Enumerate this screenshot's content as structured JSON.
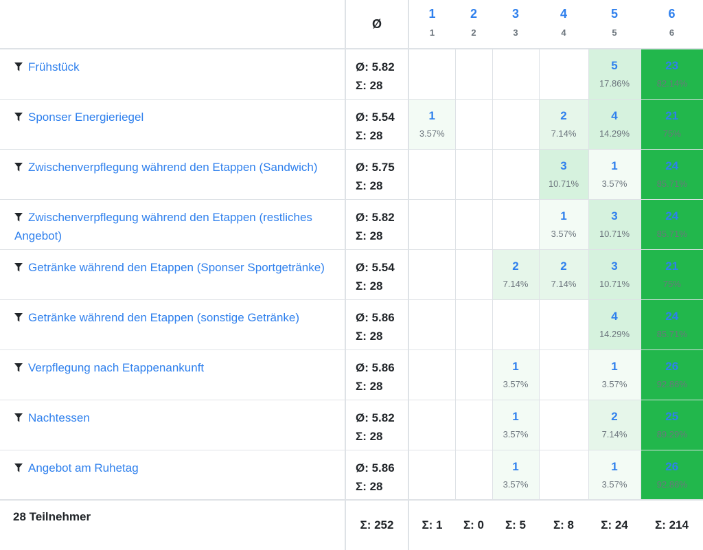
{
  "header": {
    "avg_symbol": "Ø",
    "options": [
      {
        "label": "1",
        "sub": "1"
      },
      {
        "label": "2",
        "sub": "2"
      },
      {
        "label": "3",
        "sub": "3"
      },
      {
        "label": "4",
        "sub": "4"
      },
      {
        "label": "5",
        "sub": "5"
      },
      {
        "label": "6",
        "sub": "6"
      }
    ]
  },
  "colors": {
    "link": "#2f80ed",
    "heat_scale": [
      "#ffffff",
      "#f3fbf5",
      "#e6f6ea",
      "#d6f2de",
      "#22b74c"
    ]
  },
  "rows": [
    {
      "question": "Frühstück",
      "avg": "Ø: 5.82",
      "sum": "Σ: 28",
      "cells": [
        {
          "count": "",
          "pct": ""
        },
        {
          "count": "",
          "pct": ""
        },
        {
          "count": "",
          "pct": ""
        },
        {
          "count": "",
          "pct": ""
        },
        {
          "count": "5",
          "pct": "17.86%"
        },
        {
          "count": "23",
          "pct": "82.14%"
        }
      ]
    },
    {
      "question": "Sponser Energieriegel",
      "avg": "Ø: 5.54",
      "sum": "Σ: 28",
      "cells": [
        {
          "count": "1",
          "pct": "3.57%"
        },
        {
          "count": "",
          "pct": ""
        },
        {
          "count": "",
          "pct": ""
        },
        {
          "count": "2",
          "pct": "7.14%"
        },
        {
          "count": "4",
          "pct": "14.29%"
        },
        {
          "count": "21",
          "pct": "75%"
        }
      ]
    },
    {
      "question": "Zwischenverpflegung während den Etappen (Sand­wich)",
      "avg": "Ø: 5.75",
      "sum": "Σ: 28",
      "cells": [
        {
          "count": "",
          "pct": ""
        },
        {
          "count": "",
          "pct": ""
        },
        {
          "count": "",
          "pct": ""
        },
        {
          "count": "3",
          "pct": "10.71%"
        },
        {
          "count": "1",
          "pct": "3.57%"
        },
        {
          "count": "24",
          "pct": "85.71%"
        }
      ]
    },
    {
      "question": "Zwischenverpflegung während den Etappen (restli­ches Angebot)",
      "avg": "Ø: 5.82",
      "sum": "Σ: 28",
      "cells": [
        {
          "count": "",
          "pct": ""
        },
        {
          "count": "",
          "pct": ""
        },
        {
          "count": "",
          "pct": ""
        },
        {
          "count": "1",
          "pct": "3.57%"
        },
        {
          "count": "3",
          "pct": "10.71%"
        },
        {
          "count": "24",
          "pct": "85.71%"
        }
      ]
    },
    {
      "question": "Getränke während den Etappen (Sponser Sportgeträn­ke)",
      "avg": "Ø: 5.54",
      "sum": "Σ: 28",
      "cells": [
        {
          "count": "",
          "pct": ""
        },
        {
          "count": "",
          "pct": ""
        },
        {
          "count": "2",
          "pct": "7.14%"
        },
        {
          "count": "2",
          "pct": "7.14%"
        },
        {
          "count": "3",
          "pct": "10.71%"
        },
        {
          "count": "21",
          "pct": "75%"
        }
      ]
    },
    {
      "question": "Getränke während den Etappen (sonstige Getränke)",
      "avg": "Ø: 5.86",
      "sum": "Σ: 28",
      "cells": [
        {
          "count": "",
          "pct": ""
        },
        {
          "count": "",
          "pct": ""
        },
        {
          "count": "",
          "pct": ""
        },
        {
          "count": "",
          "pct": ""
        },
        {
          "count": "4",
          "pct": "14.29%"
        },
        {
          "count": "24",
          "pct": "85.71%"
        }
      ]
    },
    {
      "question": "Verpflegung nach Etappenankunft",
      "avg": "Ø: 5.86",
      "sum": "Σ: 28",
      "cells": [
        {
          "count": "",
          "pct": ""
        },
        {
          "count": "",
          "pct": ""
        },
        {
          "count": "1",
          "pct": "3.57%"
        },
        {
          "count": "",
          "pct": ""
        },
        {
          "count": "1",
          "pct": "3.57%"
        },
        {
          "count": "26",
          "pct": "92.86%"
        }
      ]
    },
    {
      "question": "Nachtessen",
      "avg": "Ø: 5.82",
      "sum": "Σ: 28",
      "cells": [
        {
          "count": "",
          "pct": ""
        },
        {
          "count": "",
          "pct": ""
        },
        {
          "count": "1",
          "pct": "3.57%"
        },
        {
          "count": "",
          "pct": ""
        },
        {
          "count": "2",
          "pct": "7.14%"
        },
        {
          "count": "25",
          "pct": "89.29%"
        }
      ]
    },
    {
      "question": "Angebot am Ruhetag",
      "avg": "Ø: 5.86",
      "sum": "Σ: 28",
      "cells": [
        {
          "count": "",
          "pct": ""
        },
        {
          "count": "",
          "pct": ""
        },
        {
          "count": "1",
          "pct": "3.57%"
        },
        {
          "count": "",
          "pct": ""
        },
        {
          "count": "1",
          "pct": "3.57%"
        },
        {
          "count": "26",
          "pct": "92.86%"
        }
      ]
    }
  ],
  "footer": {
    "participants": "28 Teilnehmer",
    "total_sum": "Σ: 252",
    "option_sums": [
      "Σ: 1",
      "Σ: 0",
      "Σ: 5",
      "Σ: 8",
      "Σ: 24",
      "Σ: 214"
    ]
  }
}
